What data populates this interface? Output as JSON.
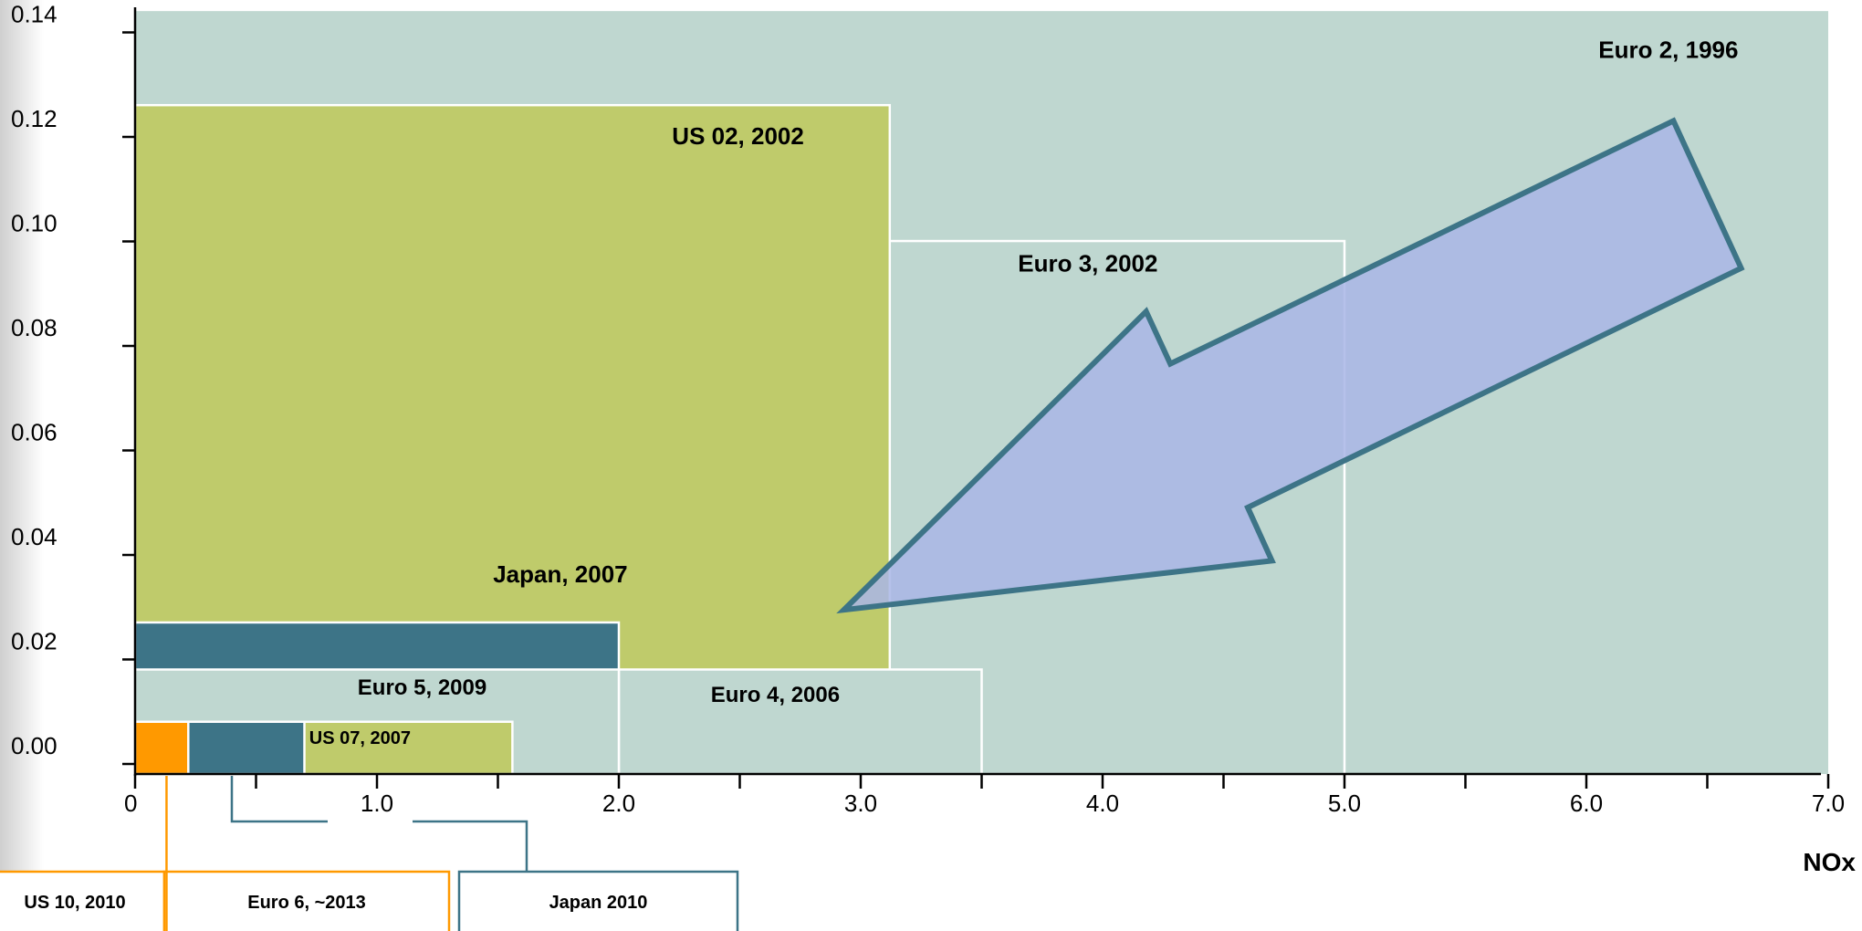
{
  "colors": {
    "euro_region": "#bfd7d0",
    "us_region": "#bfcb6b",
    "japan_region": "#3d7487",
    "us10_region": "#ff9900",
    "arrow_fill": "#a9b6e6",
    "arrow_stroke": "#3d7487",
    "region_border": "#ffffff"
  },
  "chart_data": {
    "type": "area",
    "xlabel": "NOx",
    "ylabel": "",
    "xlim": [
      0,
      7.0
    ],
    "ylim": [
      0,
      0.145
    ],
    "x_ticks": [
      0,
      0.5,
      1.0,
      1.5,
      2.0,
      2.5,
      3.0,
      3.5,
      4.0,
      4.5,
      5.0,
      5.5,
      6.0,
      6.5,
      7.0
    ],
    "x_tick_labels": [
      {
        "value": 0,
        "label": "0"
      },
      {
        "value": 1.0,
        "label": "1.0"
      },
      {
        "value": 2.0,
        "label": "2.0"
      },
      {
        "value": 3.0,
        "label": "3.0"
      },
      {
        "value": 4.0,
        "label": "4.0"
      },
      {
        "value": 5.0,
        "label": "5.0"
      },
      {
        "value": 6.0,
        "label": "6.0"
      },
      {
        "value": 7.0,
        "label": "7.0"
      }
    ],
    "y_ticks": [
      0,
      0.02,
      0.04,
      0.06,
      0.08,
      0.1,
      0.12,
      0.14
    ],
    "y_tick_labels": [
      "0.00",
      "0.02",
      "0.04",
      "0.06",
      "0.08",
      "0.10",
      "0.12",
      "0.14"
    ],
    "grid": false,
    "regions": [
      {
        "id": "euro2",
        "name": "Euro 2, 1996",
        "nox": 7.0,
        "pm": 0.146,
        "color": "euro_region",
        "border": false
      },
      {
        "id": "euro3",
        "name": "Euro 3, 2002",
        "nox": 5.0,
        "pm": 0.102,
        "color": "euro_region",
        "border": true
      },
      {
        "id": "us02",
        "name": "US 02, 2002",
        "nox": 3.12,
        "pm": 0.128,
        "color": "us_region",
        "border": true
      },
      {
        "id": "euro4",
        "name": "Euro 4, 2006",
        "nox": 3.5,
        "pm": 0.02,
        "color": "euro_region",
        "border": true
      },
      {
        "id": "japan2007",
        "name": "Japan, 2007",
        "nox": 2.0,
        "pm": 0.029,
        "color": "japan_region",
        "border": true
      },
      {
        "id": "euro5",
        "name": "Euro 5, 2009",
        "nox": 2.0,
        "pm": 0.02,
        "color": "euro_region",
        "border": true
      },
      {
        "id": "us07",
        "name": "US 07, 2007",
        "nox": 1.56,
        "pm": 0.01,
        "color": "us_region",
        "border": true
      },
      {
        "id": "japan2010",
        "name": "Japan 2010",
        "nox": 0.7,
        "pm": 0.01,
        "color": "japan_region",
        "border": true
      },
      {
        "id": "us10",
        "name": "US 10, 2010",
        "nox": 0.22,
        "pm": 0.01,
        "color": "us10_region",
        "border": true
      }
    ],
    "annotations": [
      {
        "id": "lbl-euro2",
        "text": "Euro 2, 1996",
        "x": 6.05,
        "y": 0.137,
        "size": 26
      },
      {
        "id": "lbl-us02",
        "text": "US 02, 2002",
        "x": 2.22,
        "y": 0.1205,
        "size": 26
      },
      {
        "id": "lbl-euro3",
        "text": "Euro 3, 2002",
        "x": 3.65,
        "y": 0.0962,
        "size": 26
      },
      {
        "id": "lbl-japan2007",
        "text": "Japan, 2007",
        "x": 1.48,
        "y": 0.0367,
        "size": 26
      },
      {
        "id": "lbl-euro5",
        "text": "Euro 5, 2009",
        "x": 0.92,
        "y": 0.0152,
        "size": 24
      },
      {
        "id": "lbl-euro4",
        "text": "Euro 4, 2006",
        "x": 2.38,
        "y": 0.0138,
        "size": 24
      },
      {
        "id": "lbl-us07",
        "text": "US 07, 2007",
        "x": 0.72,
        "y": 0.0058,
        "size": 20
      }
    ],
    "arrow": {
      "points": [
        [
          6.36,
          0.125
        ],
        [
          6.64,
          0.0968
        ],
        [
          4.6,
          0.051
        ],
        [
          4.7,
          0.0408
        ],
        [
          2.93,
          0.0314
        ],
        [
          4.18,
          0.0885
        ],
        [
          4.28,
          0.0785
        ]
      ]
    },
    "callouts": [
      {
        "id": "callout-us10",
        "text": "US 10, 2010",
        "color": "us10_region"
      },
      {
        "id": "callout-euro6",
        "text": "Euro 6, ~2013",
        "color": "us10_region"
      },
      {
        "id": "callout-japan2010",
        "text": "Japan 2010",
        "color": "japan_region"
      }
    ]
  }
}
